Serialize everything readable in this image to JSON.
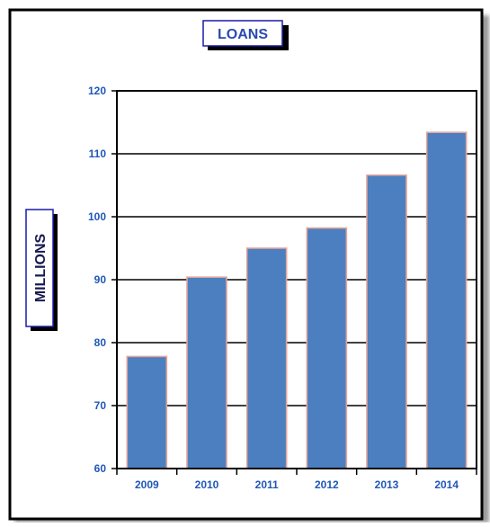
{
  "chart_data": {
    "type": "bar",
    "title": "LOANS",
    "ylabel": "MILLIONS",
    "xlabel": "",
    "categories": [
      "2009",
      "2010",
      "2011",
      "2012",
      "2013",
      "2014"
    ],
    "values": [
      77.8,
      90.4,
      95.0,
      98.2,
      106.6,
      113.4
    ],
    "ylim": [
      60,
      120
    ],
    "yticks": [
      60,
      70,
      80,
      90,
      100,
      110,
      120
    ],
    "ytick_labels": [
      "60",
      "70",
      "80",
      "90",
      "100",
      "110",
      "120"
    ],
    "grid": true,
    "legend": "none",
    "colors": {
      "bar_fill": "#4b7fbf",
      "bar_edge": "#e3a49b",
      "tick_label": "#1f57b8",
      "box_border": "#1a1aa8",
      "box_text": "#2a49b0",
      "frame": "#000000"
    }
  }
}
